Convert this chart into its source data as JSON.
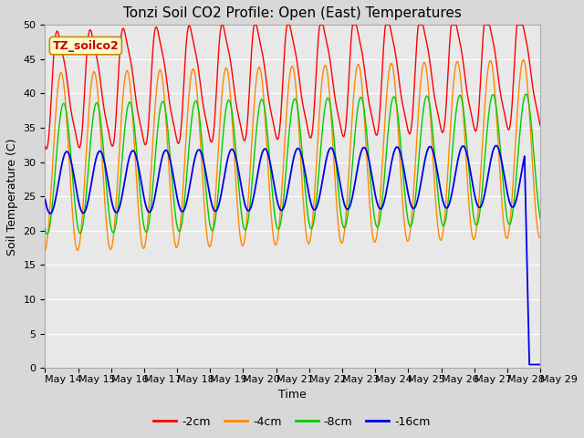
{
  "title": "Tonzi Soil CO2 Profile: Open (East) Temperatures",
  "xlabel": "Time",
  "ylabel": "Soil Temperature (C)",
  "legend_label": "TZ_soilco2",
  "series_labels": [
    "-2cm",
    "-4cm",
    "-8cm",
    "-16cm"
  ],
  "series_colors": [
    "#ff0000",
    "#ff8800",
    "#00cc00",
    "#0000ee"
  ],
  "ylim": [
    0,
    50
  ],
  "yticks": [
    0,
    5,
    10,
    15,
    20,
    25,
    30,
    35,
    40,
    45,
    50
  ],
  "bg_color": "#d8d8d8",
  "plot_bg_upper": "#e8e8e8",
  "plot_bg_lower": "#c8c8c8",
  "grid_color": "#ffffff",
  "n_days": 15,
  "title_fontsize": 11,
  "axis_fontsize": 9,
  "tick_fontsize": 8,
  "legend_fontsize": 9,
  "lower_band_threshold": 10
}
